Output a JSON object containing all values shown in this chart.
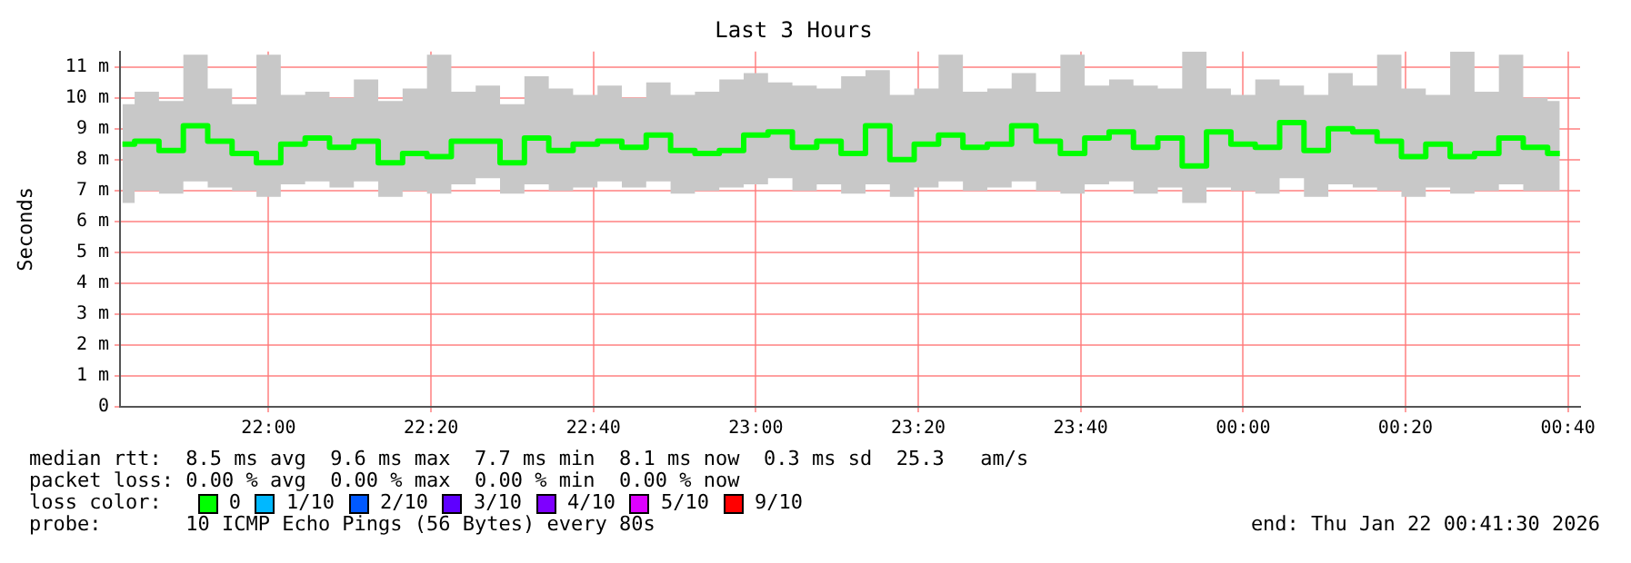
{
  "chart_data": {
    "type": "step",
    "title": "Last 3 Hours",
    "ylabel": "Seconds",
    "x": [
      "2026-01-21T21:42",
      "2026-01-21T21:45",
      "2026-01-21T21:48",
      "2026-01-21T21:51",
      "2026-01-21T21:54",
      "2026-01-21T21:57",
      "2026-01-21T22:00",
      "2026-01-21T22:03",
      "2026-01-21T22:06",
      "2026-01-21T22:09",
      "2026-01-21T22:12",
      "2026-01-21T22:15",
      "2026-01-21T22:18",
      "2026-01-21T22:21",
      "2026-01-21T22:24",
      "2026-01-21T22:27",
      "2026-01-21T22:30",
      "2026-01-21T22:33",
      "2026-01-21T22:36",
      "2026-01-21T22:39",
      "2026-01-21T22:42",
      "2026-01-21T22:45",
      "2026-01-21T22:48",
      "2026-01-21T22:51",
      "2026-01-21T22:54",
      "2026-01-21T22:57",
      "2026-01-21T23:00",
      "2026-01-21T23:03",
      "2026-01-21T23:06",
      "2026-01-21T23:09",
      "2026-01-21T23:12",
      "2026-01-21T23:15",
      "2026-01-21T23:18",
      "2026-01-21T23:21",
      "2026-01-21T23:24",
      "2026-01-21T23:27",
      "2026-01-21T23:30",
      "2026-01-21T23:33",
      "2026-01-21T23:36",
      "2026-01-21T23:39",
      "2026-01-21T23:42",
      "2026-01-21T23:45",
      "2026-01-21T23:48",
      "2026-01-21T23:51",
      "2026-01-21T23:54",
      "2026-01-21T23:57",
      "2026-01-22T00:00",
      "2026-01-22T00:03",
      "2026-01-22T00:06",
      "2026-01-22T00:09",
      "2026-01-22T00:12",
      "2026-01-22T00:15",
      "2026-01-22T00:18",
      "2026-01-22T00:21",
      "2026-01-22T00:24",
      "2026-01-22T00:27",
      "2026-01-22T00:30",
      "2026-01-22T00:33",
      "2026-01-22T00:36",
      "2026-01-22T00:39"
    ],
    "series": [
      {
        "color": "#00ff00",
        "values": [
          8.5,
          8.6,
          8.3,
          9.1,
          8.6,
          8.2,
          7.9,
          8.5,
          8.7,
          8.4,
          8.6,
          7.9,
          8.2,
          8.1,
          8.6,
          8.6,
          7.9,
          8.7,
          8.3,
          8.5,
          8.6,
          8.4,
          8.8,
          8.3,
          8.2,
          8.3,
          8.8,
          8.9,
          8.4,
          8.6,
          8.2,
          9.1,
          8.0,
          8.5,
          8.8,
          8.4,
          8.5,
          9.1,
          8.6,
          8.2,
          8.7,
          8.9,
          8.4,
          8.7,
          7.8,
          8.9,
          8.5,
          8.4,
          9.2,
          8.3,
          9.0,
          8.9,
          8.6,
          8.1,
          8.5,
          8.1,
          8.2,
          8.7,
          8.4,
          8.2
        ],
        "lower": [
          6.6,
          7.0,
          6.9,
          7.3,
          7.1,
          7.0,
          6.8,
          7.2,
          7.3,
          7.1,
          7.3,
          6.8,
          7.0,
          6.9,
          7.2,
          7.4,
          6.9,
          7.2,
          7.0,
          7.1,
          7.3,
          7.1,
          7.3,
          6.9,
          7.0,
          7.1,
          7.2,
          7.4,
          7.0,
          7.2,
          6.9,
          7.2,
          6.8,
          7.1,
          7.3,
          7.0,
          7.1,
          7.3,
          7.0,
          6.9,
          7.2,
          7.3,
          6.9,
          7.1,
          6.6,
          7.1,
          7.0,
          6.9,
          7.4,
          6.8,
          7.2,
          7.1,
          7.0,
          6.8,
          7.1,
          6.9,
          7.0,
          7.2,
          7.0,
          7.0
        ],
        "upper": [
          9.8,
          10.2,
          9.9,
          11.4,
          10.3,
          9.8,
          11.4,
          10.1,
          10.2,
          10.0,
          10.6,
          9.9,
          10.3,
          11.4,
          10.2,
          10.4,
          9.8,
          10.7,
          10.3,
          10.1,
          10.4,
          10.0,
          10.5,
          10.1,
          10.2,
          10.6,
          10.8,
          10.5,
          10.4,
          10.3,
          10.7,
          10.9,
          10.1,
          10.3,
          11.4,
          10.2,
          10.3,
          10.8,
          10.2,
          11.4,
          10.4,
          10.6,
          10.4,
          10.3,
          11.5,
          10.3,
          10.1,
          10.6,
          10.4,
          10.1,
          10.8,
          10.4,
          11.4,
          10.3,
          10.1,
          11.5,
          10.2,
          11.4,
          10.0,
          9.9
        ]
      }
    ],
    "xlim": [
      "2026-01-21T21:41:42",
      "2026-01-22T00:41:30"
    ],
    "xticks": [
      {
        "value": "2026-01-21T22:00",
        "label": "22:00"
      },
      {
        "value": "2026-01-21T22:20",
        "label": "22:20"
      },
      {
        "value": "2026-01-21T22:40",
        "label": "22:40"
      },
      {
        "value": "2026-01-21T23:00",
        "label": "23:00"
      },
      {
        "value": "2026-01-21T23:20",
        "label": "23:20"
      },
      {
        "value": "2026-01-21T23:40",
        "label": "23:40"
      },
      {
        "value": "2026-01-22T00:00",
        "label": "00:00"
      },
      {
        "value": "2026-01-22T00:20",
        "label": "00:20"
      },
      {
        "value": "2026-01-22T00:40",
        "label": "00:40"
      }
    ],
    "ylim": [
      0,
      11.5
    ],
    "yticks": [
      0,
      {
        "value": 1,
        "label": "1 m"
      },
      {
        "value": 2,
        "label": "2 m"
      },
      {
        "value": 3,
        "label": "3 m"
      },
      {
        "value": 4,
        "label": "4 m"
      },
      {
        "value": 5,
        "label": "5 m"
      },
      {
        "value": 6,
        "label": "6 m"
      },
      {
        "value": 7,
        "label": "7 m"
      },
      {
        "value": 8,
        "label": "8 m"
      },
      {
        "value": 9,
        "label": "9 m"
      },
      {
        "value": 10,
        "label": "10 m"
      },
      {
        "value": 11,
        "label": "11 m"
      }
    ],
    "grid": true,
    "legend": false,
    "marker": "none",
    "annotations": [
      "median rtt:  8.5 ms avg  9.6 ms max  7.7 ms min  8.1 ms now  0.3 ms sd  25.3   am/s",
      "packet loss: 0.00 % avg  0.00 % max  0.00 % min  0.00 % now",
      "loss color:",
      "0",
      "1/10",
      "2/10",
      "3/10",
      "4/10",
      "5/10",
      "9/10",
      "probe:       10 ICMP Echo Pings (56 Bytes) every 80s",
      "end: Thu Jan 22 00:41:30 2026"
    ]
  }
}
